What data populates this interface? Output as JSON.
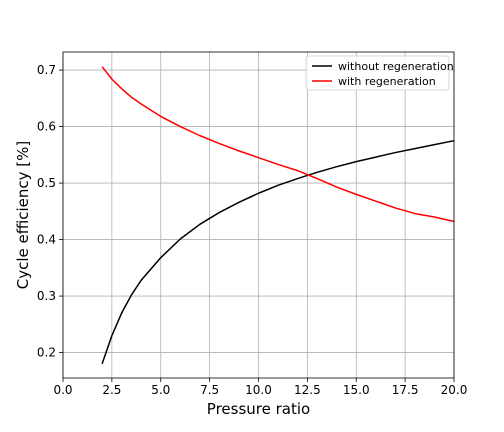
{
  "chart_data": {
    "type": "line",
    "xlabel": "Pressure ratio",
    "ylabel": "Cycle efficiency [%]",
    "xlim": [
      0,
      20
    ],
    "ylim": [
      0.155,
      0.732
    ],
    "xticks": [
      0.0,
      2.5,
      5.0,
      7.5,
      10.0,
      12.5,
      15.0,
      17.5,
      20.0
    ],
    "xtick_labels": [
      "0.0",
      "2.5",
      "5.0",
      "7.5",
      "10.0",
      "12.5",
      "15.0",
      "17.5",
      "20.0"
    ],
    "yticks": [
      0.2,
      0.3,
      0.4,
      0.5,
      0.6,
      0.7
    ],
    "ytick_labels": [
      "0.2",
      "0.3",
      "0.4",
      "0.5",
      "0.6",
      "0.7"
    ],
    "grid": true,
    "legend_position": "top-right",
    "series": [
      {
        "name": "without regeneration",
        "color": "#000000",
        "x": [
          2,
          2.5,
          3,
          3.5,
          4,
          5,
          6,
          7,
          8,
          9,
          10,
          11,
          12,
          13,
          14,
          15,
          16,
          17,
          18,
          19,
          20
        ],
        "y": [
          0.18,
          0.23,
          0.27,
          0.302,
          0.328,
          0.368,
          0.401,
          0.427,
          0.448,
          0.466,
          0.482,
          0.496,
          0.508,
          0.519,
          0.529,
          0.538,
          0.546,
          0.554,
          0.561,
          0.568,
          0.575
        ]
      },
      {
        "name": "with regeneration",
        "color": "#ff0000",
        "x": [
          2,
          2.5,
          3,
          3.5,
          4,
          5,
          6,
          7,
          8,
          9,
          10,
          11,
          12,
          13,
          14,
          15,
          16,
          17,
          18,
          19,
          20
        ],
        "y": [
          0.706,
          0.684,
          0.667,
          0.652,
          0.64,
          0.618,
          0.6,
          0.584,
          0.57,
          0.557,
          0.545,
          0.533,
          0.522,
          0.508,
          0.493,
          0.48,
          0.468,
          0.456,
          0.446,
          0.44,
          0.432
        ]
      }
    ]
  }
}
